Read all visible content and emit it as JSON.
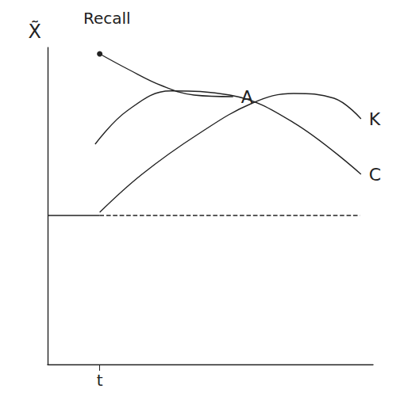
{
  "chart_data": {
    "type": "line",
    "title": "Recall",
    "y_label": "X̃",
    "xlim": [
      0,
      10
    ],
    "xticks": [
      {
        "value": 1.6,
        "label": "t"
      }
    ],
    "ylim": [
      0,
      10
    ],
    "yticks": [],
    "tick_labels": "x",
    "grid": false,
    "series": [
      {
        "name": "A",
        "color": "#222222",
        "marker": "circle",
        "line_style": "solid",
        "x": [
          1.6,
          2.5,
          3.5,
          4.5,
          5.7
        ],
        "values": [
          9.8,
          9.3,
          8.8,
          8.5,
          8.45
        ]
      },
      {
        "name": "K",
        "color": "#222222",
        "marker": "none",
        "line_style": "solid",
        "x": [
          1.6,
          2.9,
          4.6,
          6.3,
          7.56,
          8.8,
          9.63
        ],
        "values": [
          4.8,
          6.0,
          7.25,
          8.25,
          8.55,
          8.4,
          7.75
        ]
      },
      {
        "name": "C",
        "color": "#222222",
        "marker": "none",
        "line_style": "solid",
        "x": [
          1.46,
          2.44,
          3.78,
          5.6,
          7.56,
          9.63
        ],
        "values": [
          6.95,
          8.0,
          8.63,
          8.5,
          7.63,
          6.0
        ]
      },
      {
        "color": "#222222",
        "marker": "none",
        "line_style": "solid",
        "x": [
          0,
          1.6
        ],
        "values": [
          4.7,
          4.7
        ]
      },
      {
        "color": "#222222",
        "marker": "none",
        "line_style": "dashed",
        "x": [
          1.6,
          9.6
        ],
        "values": [
          4.7,
          4.7
        ]
      }
    ]
  }
}
